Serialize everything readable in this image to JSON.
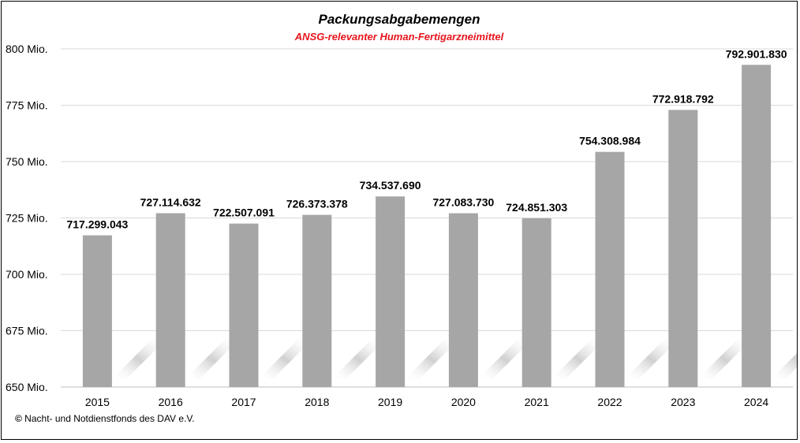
{
  "chart_data": {
    "type": "bar",
    "title": "Packungsabgabemengen",
    "subtitle": "ANSG-relevanter Human-Fertigarzneimittel",
    "categories": [
      "2015",
      "2016",
      "2017",
      "2018",
      "2019",
      "2020",
      "2021",
      "2022",
      "2023",
      "2024"
    ],
    "values": [
      717299043,
      727114632,
      722507091,
      726373378,
      734537690,
      727083730,
      724851303,
      754308984,
      772918792,
      792901830
    ],
    "data_labels": [
      "717.299.043",
      "727.114.632",
      "722.507.091",
      "726.373.378",
      "734.537.690",
      "727.083.730",
      "724.851.303",
      "754.308.984",
      "772.918.792",
      "792.901.830"
    ],
    "ylim": [
      650000000,
      800000000
    ],
    "yticks": [
      650000000,
      675000000,
      700000000,
      725000000,
      750000000,
      775000000,
      800000000
    ],
    "ytick_labels": [
      "650 Mio.",
      "675 Mio.",
      "700 Mio.",
      "725 Mio.",
      "750 Mio.",
      "775 Mio.",
      "800 Mio."
    ],
    "xlabel": "",
    "ylabel": "",
    "grid": true,
    "bar_color": "#a6a6a6",
    "gridline_color": "#d9d9d9",
    "subtitle_color": "#e8141c"
  },
  "footer": {
    "copyright_symbol": "©",
    "text": " Nacht- und Notdienstfonds  des DAV e.V."
  }
}
